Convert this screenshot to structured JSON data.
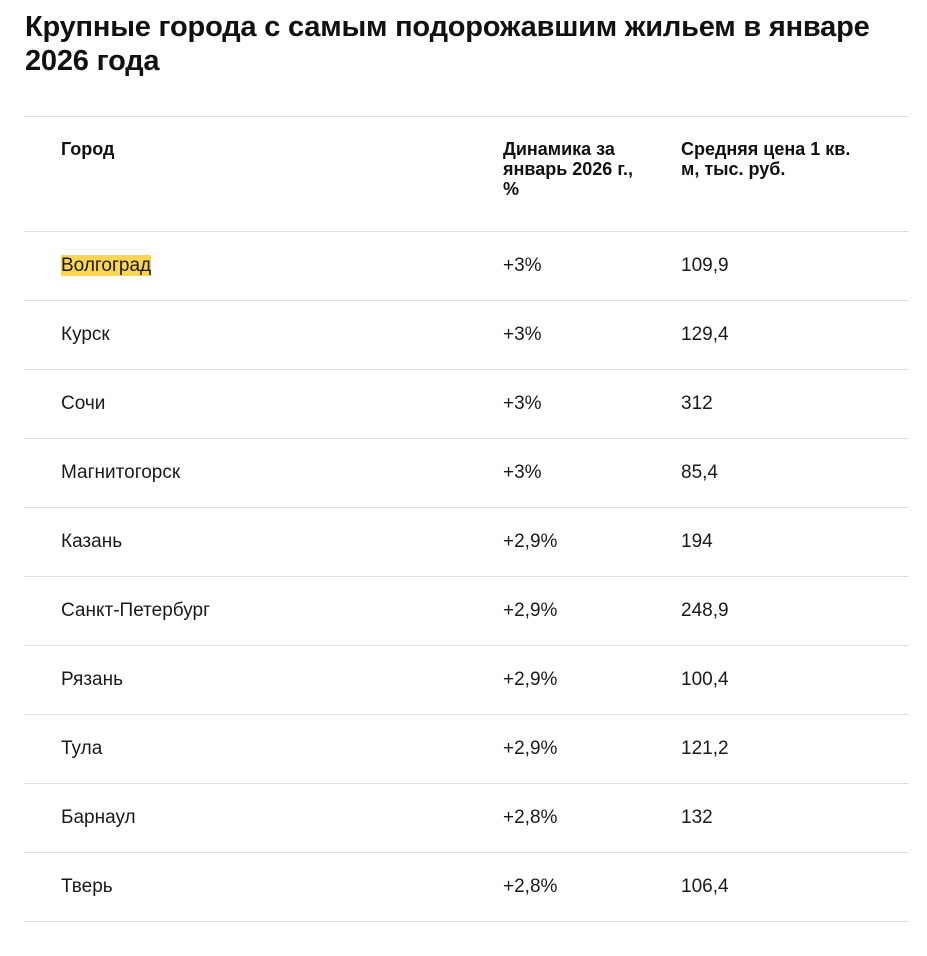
{
  "title": "Крупные города с самым подорожавшим жильем в январе 2026 года",
  "table": {
    "headers": [
      "Город",
      "Динамика за январь 2026 г., %",
      "Средняя цена 1 кв. м, тыс. руб."
    ],
    "rows": [
      [
        "Волгоград",
        "+3%",
        "109,9"
      ],
      [
        "Курск",
        "+3%",
        "129,4"
      ],
      [
        "Сочи",
        "+3%",
        "312"
      ],
      [
        "Магнитогорск",
        "+3%",
        "85,4"
      ],
      [
        "Казань",
        "+2,9%",
        "194"
      ],
      [
        "Санкт-Петербург",
        "+2,9%",
        "248,9"
      ],
      [
        "Рязань",
        "+2,9%",
        "100,4"
      ],
      [
        "Тула",
        "+2,9%",
        "121,2"
      ],
      [
        "Барнаул",
        "+2,8%",
        "132"
      ],
      [
        "Тверь",
        "+2,8%",
        "106,4"
      ]
    ]
  },
  "colors": {
    "highlight": "#fcd453",
    "divider": "#e0e0e0",
    "text": "#1a1a1a"
  }
}
